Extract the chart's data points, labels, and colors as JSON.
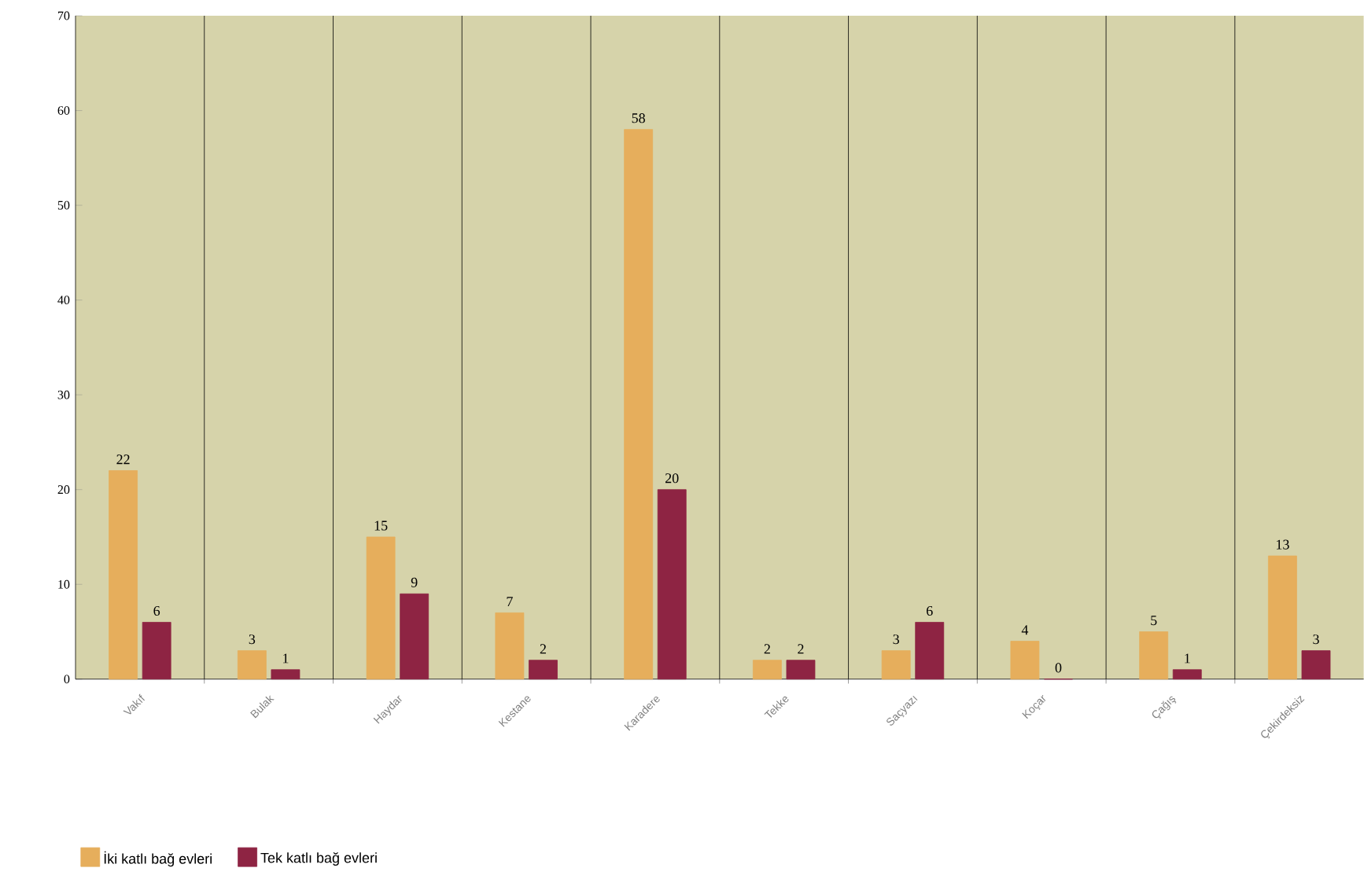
{
  "chart_data": {
    "type": "bar",
    "categories": [
      "Vakıf",
      "Bulak",
      "Haydar",
      "Kestane",
      "Karadere",
      "Tekke",
      "Saçyazı",
      "Koçar",
      "Çağış",
      "Çekirdeksiz"
    ],
    "series": [
      {
        "name": "İki katlı bağ evleri",
        "color": "#e6ae5c",
        "values": [
          22,
          3,
          15,
          7,
          58,
          2,
          3,
          4,
          5,
          13
        ]
      },
      {
        "name": "Tek katlı bağ evleri",
        "color": "#8e2443",
        "values": [
          6,
          1,
          9,
          2,
          20,
          2,
          6,
          0,
          1,
          3
        ]
      }
    ],
    "ylim": [
      0,
      70
    ],
    "yticks": [
      0,
      10,
      20,
      30,
      40,
      50,
      60,
      70
    ],
    "grid": "x",
    "legend": "bottom",
    "data_labels": true
  }
}
